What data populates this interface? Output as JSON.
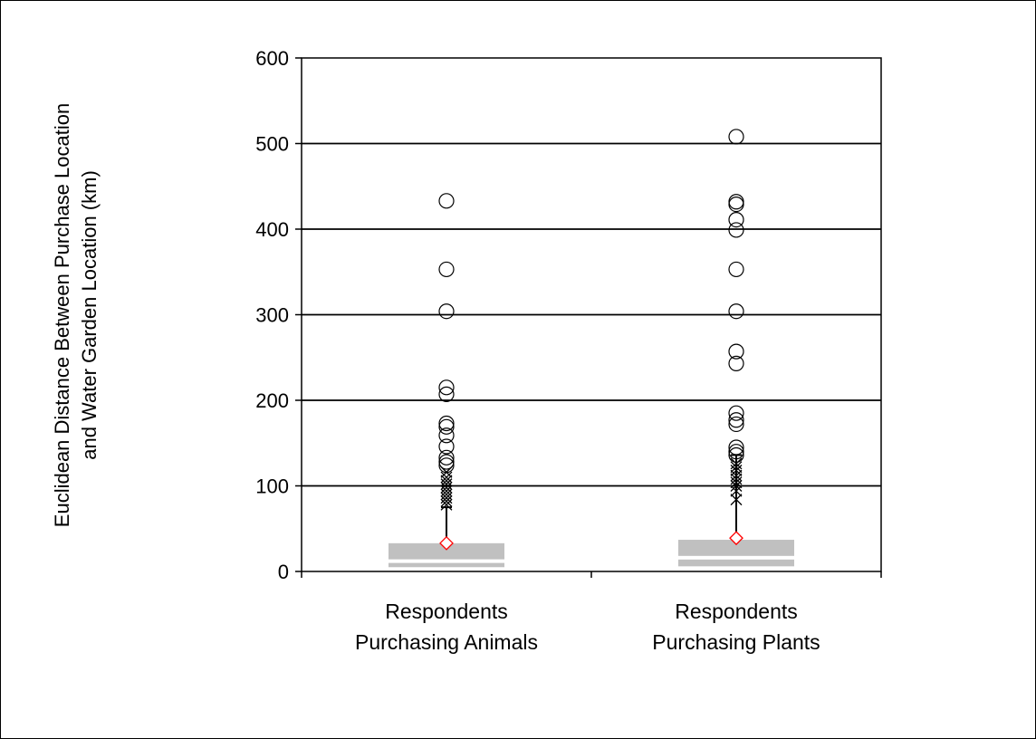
{
  "chart_data": {
    "type": "box",
    "ylabel_lines": [
      "Euclidean Distance Between Purchase Location",
      "and Water Garden Location (km)"
    ],
    "xlabel": "",
    "ylim": [
      0,
      600
    ],
    "yticks": [
      "0",
      "100",
      "200",
      "300",
      "400",
      "500",
      "600"
    ],
    "grid": "horizontal",
    "categories": [
      {
        "line1": "Respondents",
        "line2": "Purchasing Animals"
      },
      {
        "line1": "Respondents",
        "line2": "Purchasing Plants"
      }
    ],
    "boxes": [
      {
        "name": "Respondents Purchasing Animals",
        "q1": 5,
        "median": 11,
        "q3": 33,
        "mean": 33,
        "whisker_high": 75,
        "extremes": [
          78,
          82,
          86,
          90,
          94,
          98,
          102,
          106,
          110,
          116
        ],
        "outliers": [
          433,
          353,
          304,
          215,
          207,
          173,
          169,
          159,
          146,
          133,
          128,
          124
        ]
      },
      {
        "name": "Respondents Purchasing Plants",
        "q1": 6,
        "median": 15,
        "q3": 37,
        "mean": 39,
        "whisker_high": 136,
        "extremes": [
          84,
          94,
          100,
          104,
          108,
          112,
          118,
          122,
          126
        ],
        "outliers": [
          508,
          432,
          429,
          411,
          399,
          353,
          304,
          257,
          243,
          185,
          177,
          172,
          145,
          140,
          136
        ]
      }
    ],
    "colors": {
      "box": "#c0c0c0",
      "mean_marker": "#ff0000",
      "outlier": "#000000",
      "grid": "#000000"
    }
  }
}
